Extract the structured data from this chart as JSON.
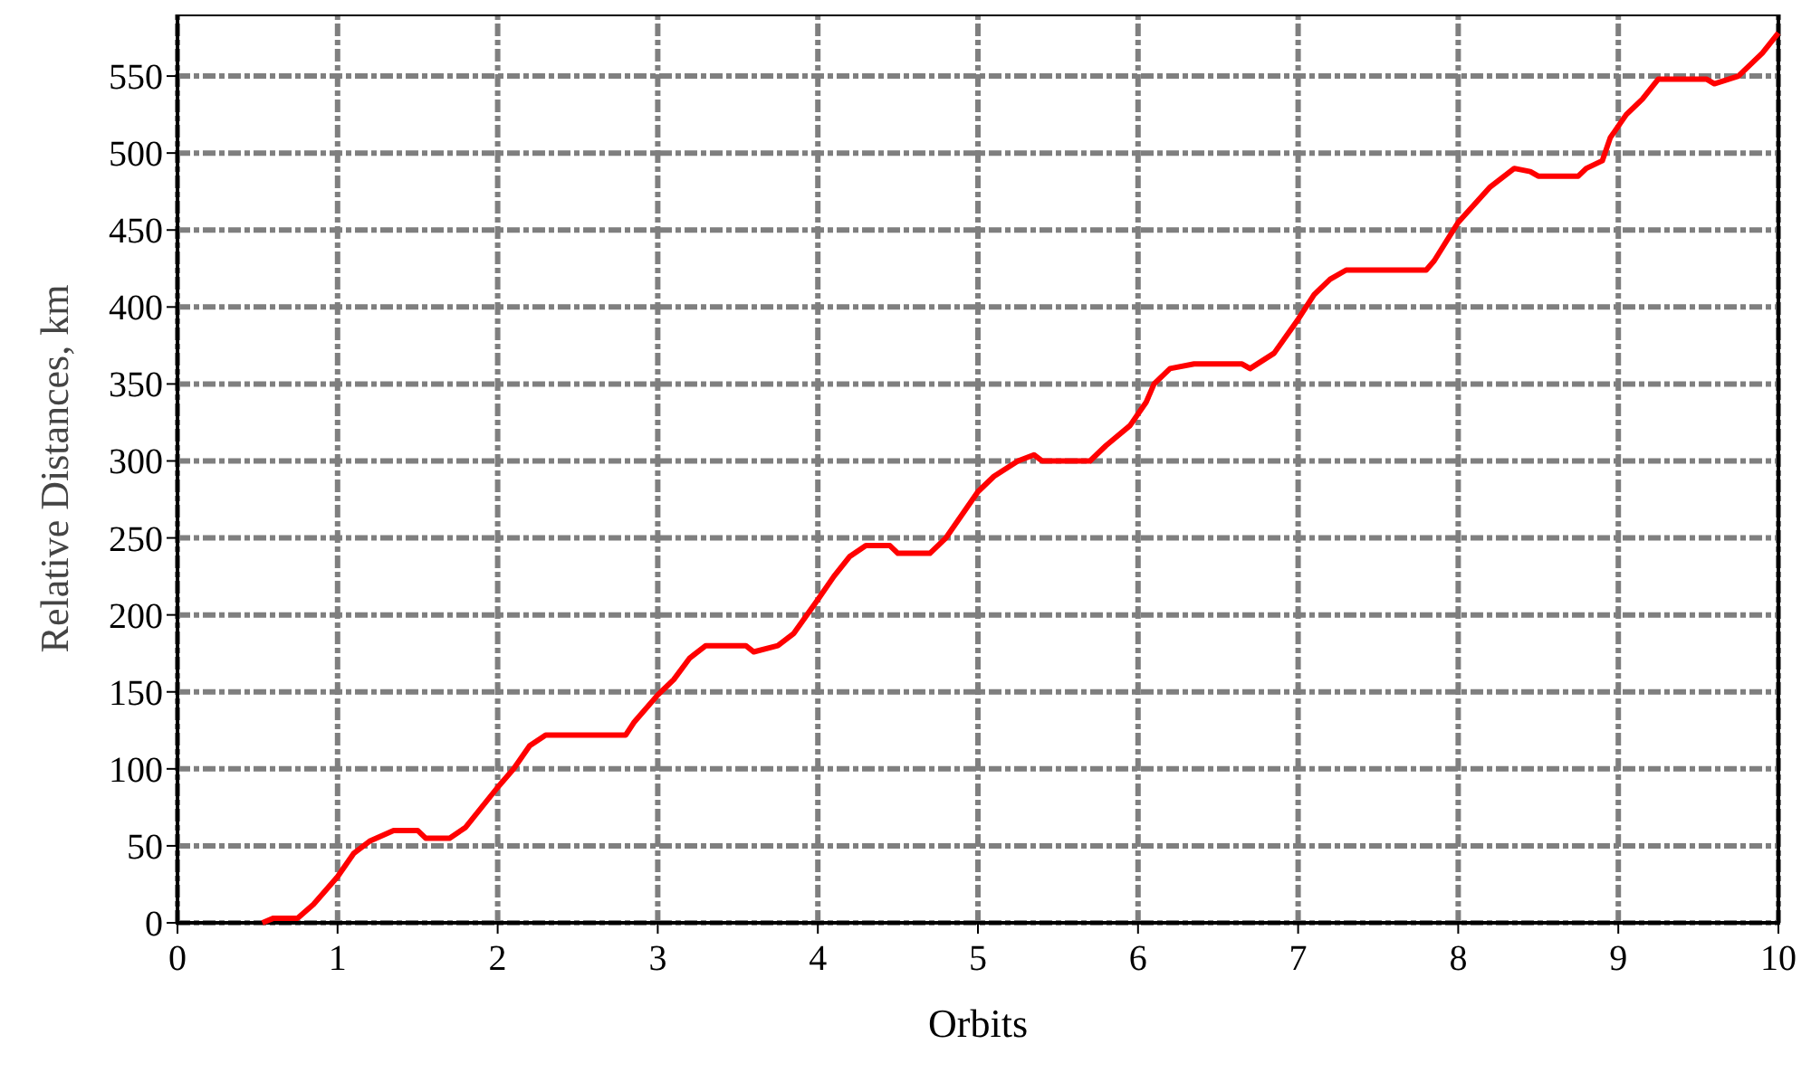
{
  "chart_data": {
    "type": "line",
    "xlabel": "Orbits",
    "ylabel": "Relative Distances, km",
    "xlim": [
      0,
      10
    ],
    "ylim": [
      0,
      590
    ],
    "xticks": [
      0,
      1,
      2,
      3,
      4,
      5,
      6,
      7,
      8,
      9,
      10
    ],
    "yticks": [
      0,
      50,
      100,
      150,
      200,
      250,
      300,
      350,
      400,
      450,
      500,
      550
    ],
    "grid": true,
    "marker": "none",
    "line_style": "solid",
    "series": [
      {
        "color": "#ff0000",
        "x": [
          0.53,
          0.6,
          0.75,
          0.85,
          1.0,
          1.1,
          1.2,
          1.35,
          1.5,
          1.55,
          1.7,
          1.8,
          2.0,
          2.1,
          2.2,
          2.3,
          2.8,
          2.85,
          3.0,
          3.1,
          3.2,
          3.3,
          3.55,
          3.6,
          3.75,
          3.85,
          4.0,
          4.1,
          4.2,
          4.3,
          4.45,
          4.5,
          4.7,
          4.8,
          5.0,
          5.1,
          5.25,
          5.35,
          5.4,
          5.7,
          5.8,
          5.95,
          6.05,
          6.1,
          6.2,
          6.35,
          6.65,
          6.7,
          6.85,
          7.0,
          7.1,
          7.2,
          7.3,
          7.8,
          7.85,
          8.0,
          8.2,
          8.35,
          8.45,
          8.5,
          8.75,
          8.8,
          8.9,
          8.95,
          9.05,
          9.15,
          9.25,
          9.55,
          9.6,
          9.75,
          9.9,
          10.0
        ],
        "values": [
          0,
          3,
          3,
          12,
          30,
          45,
          53,
          60,
          60,
          55,
          55,
          62,
          88,
          100,
          115,
          122,
          122,
          130,
          148,
          158,
          172,
          180,
          180,
          176,
          180,
          188,
          210,
          225,
          238,
          245,
          245,
          240,
          240,
          250,
          280,
          290,
          300,
          304,
          300,
          300,
          310,
          323,
          338,
          350,
          360,
          363,
          363,
          360,
          370,
          392,
          408,
          418,
          424,
          424,
          430,
          455,
          478,
          490,
          488,
          485,
          485,
          490,
          495,
          510,
          525,
          535,
          548,
          548,
          545,
          550,
          565,
          578
        ]
      }
    ]
  }
}
